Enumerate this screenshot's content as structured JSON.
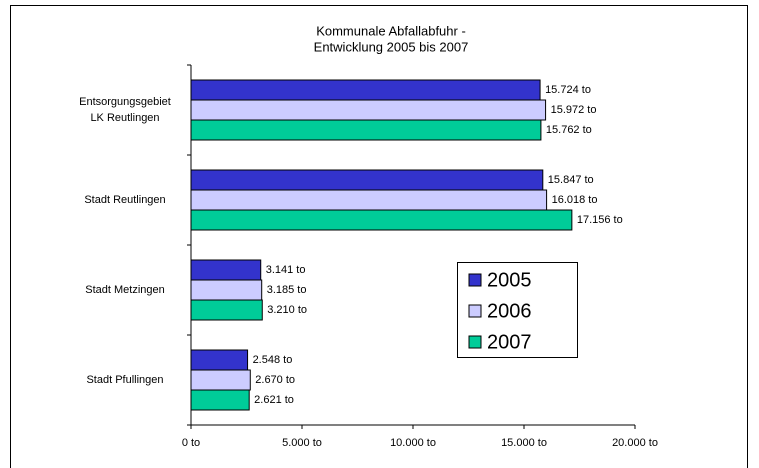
{
  "chart_data": {
    "type": "bar",
    "orientation": "horizontal",
    "title": [
      "Kommunale Abfallabfuhr -",
      "Entwicklung 2005 bis 2007"
    ],
    "categories": [
      [
        "Entsorgungsgebiet",
        "LK Reutlingen"
      ],
      [
        "Stadt Reutlingen"
      ],
      [
        "Stadt Metzingen"
      ],
      [
        "Stadt Pfullingen"
      ]
    ],
    "series": [
      {
        "name": "2005",
        "color": "#3333cc",
        "values": [
          15724,
          15847,
          3141,
          2548
        ],
        "value_labels": [
          "15.724 to",
          "15.847 to",
          "3.141 to",
          "2.548 to"
        ]
      },
      {
        "name": "2006",
        "color": "#ccccff",
        "values": [
          15972,
          16018,
          3185,
          2670
        ],
        "value_labels": [
          "15.972 to",
          "16.018 to",
          "3.185 to",
          "2.670 to"
        ]
      },
      {
        "name": "2007",
        "color": "#00cc99",
        "values": [
          15762,
          17156,
          3210,
          2621
        ],
        "value_labels": [
          "15.762 to",
          "17.156 to",
          "3.210 to",
          "2.621 to"
        ]
      }
    ],
    "xlim": [
      0,
      20000
    ],
    "xticks": [
      {
        "value": 0,
        "label": "0 to"
      },
      {
        "value": 5000,
        "label": "5.000 to"
      },
      {
        "value": 10000,
        "label": "10.000 to"
      },
      {
        "value": 15000,
        "label": "15.000 to"
      },
      {
        "value": 20000,
        "label": "20.000 to"
      }
    ],
    "legend": "right"
  }
}
